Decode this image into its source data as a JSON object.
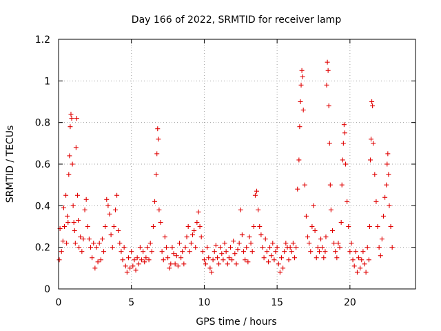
{
  "chart_data": {
    "type": "scatter",
    "title": "Day 166 of 2022, SRMTID for receiver lamp",
    "xlabel": "GPS time / hours",
    "ylabel": "SRMTID / TECUs",
    "xlim": [
      0,
      24.5
    ],
    "ylim": [
      0,
      1.2
    ],
    "xticks": [
      0,
      5,
      10,
      15,
      20
    ],
    "yticks": [
      0,
      0.2,
      0.4,
      0.6,
      0.8,
      1,
      1.2
    ],
    "xtick_labels": [
      "0",
      "5",
      "10",
      "15",
      "20"
    ],
    "ytick_labels": [
      "0",
      "0.2",
      "0.4",
      "0.6",
      "0.8",
      "1",
      "1.2"
    ],
    "grid": true,
    "marker": "+",
    "color": "#e00000",
    "series": [
      {
        "name": "SRMTID",
        "x": [
          0.05,
          0.1,
          0.2,
          0.3,
          0.35,
          0.4,
          0.5,
          0.55,
          0.6,
          0.65,
          0.7,
          0.75,
          0.8,
          0.85,
          0.9,
          0.95,
          1.0,
          1.05,
          1.1,
          1.15,
          1.2,
          1.25,
          1.3,
          1.35,
          1.4,
          1.5,
          1.6,
          1.7,
          1.8,
          1.9,
          2.0,
          2.1,
          2.2,
          2.3,
          2.4,
          2.5,
          2.6,
          2.7,
          2.8,
          2.9,
          3.0,
          3.1,
          3.2,
          3.3,
          3.4,
          3.5,
          3.6,
          3.7,
          3.8,
          3.9,
          4.0,
          4.1,
          4.2,
          4.3,
          4.4,
          4.5,
          4.6,
          4.7,
          4.8,
          4.9,
          5.0,
          5.1,
          5.2,
          5.3,
          5.4,
          5.5,
          5.6,
          5.7,
          5.8,
          5.9,
          6.0,
          6.1,
          6.2,
          6.3,
          6.4,
          6.5,
          6.6,
          6.7,
          6.75,
          6.8,
          6.85,
          6.9,
          7.0,
          7.1,
          7.2,
          7.3,
          7.4,
          7.5,
          7.6,
          7.7,
          7.8,
          7.9,
          8.0,
          8.1,
          8.2,
          8.3,
          8.4,
          8.5,
          8.6,
          8.7,
          8.8,
          8.9,
          9.0,
          9.1,
          9.2,
          9.3,
          9.4,
          9.5,
          9.6,
          9.7,
          9.8,
          9.9,
          10.0,
          10.1,
          10.2,
          10.3,
          10.4,
          10.5,
          10.6,
          10.7,
          10.8,
          10.9,
          11.0,
          11.1,
          11.2,
          11.3,
          11.4,
          11.5,
          11.6,
          11.7,
          11.8,
          11.9,
          12.0,
          12.1,
          12.2,
          12.3,
          12.4,
          12.5,
          12.6,
          12.7,
          12.8,
          12.9,
          13.0,
          13.1,
          13.2,
          13.3,
          13.4,
          13.5,
          13.6,
          13.7,
          13.8,
          13.9,
          14.0,
          14.1,
          14.2,
          14.3,
          14.4,
          14.5,
          14.6,
          14.7,
          14.8,
          14.9,
          15.0,
          15.1,
          15.2,
          15.3,
          15.4,
          15.5,
          15.6,
          15.7,
          15.8,
          15.9,
          16.0,
          16.1,
          16.2,
          16.3,
          16.4,
          16.5,
          16.55,
          16.6,
          16.65,
          16.7,
          16.75,
          16.8,
          16.9,
          17.0,
          17.1,
          17.2,
          17.3,
          17.4,
          17.5,
          17.6,
          17.7,
          17.8,
          17.9,
          18.0,
          18.1,
          18.2,
          18.3,
          18.35,
          18.4,
          18.45,
          18.5,
          18.55,
          18.6,
          18.65,
          18.7,
          18.8,
          18.9,
          19.0,
          19.1,
          19.2,
          19.3,
          19.4,
          19.45,
          19.5,
          19.55,
          19.6,
          19.65,
          19.7,
          19.8,
          19.9,
          20.0,
          20.1,
          20.2,
          20.3,
          20.4,
          20.5,
          20.6,
          20.7,
          20.8,
          20.9,
          21.0,
          21.1,
          21.2,
          21.3,
          21.35,
          21.4,
          21.45,
          21.5,
          21.55,
          21.6,
          21.7,
          21.8,
          21.9,
          22.0,
          22.1,
          22.2,
          22.3,
          22.4,
          22.5,
          22.55,
          22.6,
          22.65,
          22.7,
          22.8,
          22.9
        ],
        "y": [
          0.14,
          0.29,
          0.18,
          0.23,
          0.39,
          0.3,
          0.45,
          0.22,
          0.35,
          0.32,
          0.55,
          0.64,
          0.78,
          0.84,
          0.82,
          0.6,
          0.4,
          0.32,
          0.28,
          0.22,
          0.68,
          0.82,
          0.45,
          0.33,
          0.2,
          0.25,
          0.18,
          0.24,
          0.38,
          0.43,
          0.3,
          0.24,
          0.2,
          0.15,
          0.22,
          0.1,
          0.2,
          0.13,
          0.22,
          0.14,
          0.24,
          0.18,
          0.3,
          0.43,
          0.4,
          0.36,
          0.26,
          0.2,
          0.3,
          0.38,
          0.45,
          0.28,
          0.22,
          0.18,
          0.14,
          0.2,
          0.11,
          0.08,
          0.15,
          0.1,
          0.18,
          0.11,
          0.14,
          0.09,
          0.15,
          0.12,
          0.2,
          0.14,
          0.18,
          0.13,
          0.15,
          0.2,
          0.14,
          0.22,
          0.18,
          0.3,
          0.42,
          0.55,
          0.65,
          0.77,
          0.72,
          0.38,
          0.32,
          0.18,
          0.14,
          0.25,
          0.2,
          0.15,
          0.1,
          0.12,
          0.2,
          0.17,
          0.12,
          0.16,
          0.11,
          0.22,
          0.15,
          0.18,
          0.12,
          0.2,
          0.25,
          0.3,
          0.18,
          0.22,
          0.26,
          0.28,
          0.2,
          0.32,
          0.37,
          0.3,
          0.25,
          0.18,
          0.14,
          0.12,
          0.2,
          0.15,
          0.1,
          0.08,
          0.14,
          0.18,
          0.21,
          0.15,
          0.12,
          0.2,
          0.17,
          0.14,
          0.22,
          0.18,
          0.12,
          0.15,
          0.2,
          0.14,
          0.23,
          0.17,
          0.12,
          0.19,
          0.22,
          0.38,
          0.26,
          0.18,
          0.14,
          0.2,
          0.13,
          0.25,
          0.22,
          0.18,
          0.3,
          0.45,
          0.47,
          0.38,
          0.3,
          0.26,
          0.2,
          0.15,
          0.24,
          0.18,
          0.13,
          0.2,
          0.16,
          0.22,
          0.14,
          0.18,
          0.2,
          0.12,
          0.08,
          0.15,
          0.1,
          0.18,
          0.22,
          0.2,
          0.14,
          0.2,
          0.18,
          0.22,
          0.15,
          0.2,
          0.48,
          0.62,
          0.78,
          0.9,
          0.98,
          1.05,
          1.02,
          0.86,
          0.5,
          0.35,
          0.25,
          0.22,
          0.18,
          0.3,
          0.4,
          0.28,
          0.15,
          0.2,
          0.18,
          0.24,
          0.2,
          0.15,
          0.18,
          0.25,
          0.98,
          1.09,
          1.05,
          0.88,
          0.7,
          0.5,
          0.38,
          0.28,
          0.22,
          0.18,
          0.15,
          0.22,
          0.2,
          0.32,
          0.5,
          0.62,
          0.7,
          0.79,
          0.75,
          0.6,
          0.42,
          0.3,
          0.18,
          0.22,
          0.14,
          0.11,
          0.18,
          0.08,
          0.15,
          0.1,
          0.14,
          0.18,
          0.12,
          0.08,
          0.2,
          0.14,
          0.3,
          0.62,
          0.72,
          0.9,
          0.88,
          0.7,
          0.55,
          0.42,
          0.3,
          0.2,
          0.16,
          0.24,
          0.35,
          0.44,
          0.5,
          0.6,
          0.65,
          0.55,
          0.4,
          0.3,
          0.2
        ]
      }
    ]
  }
}
